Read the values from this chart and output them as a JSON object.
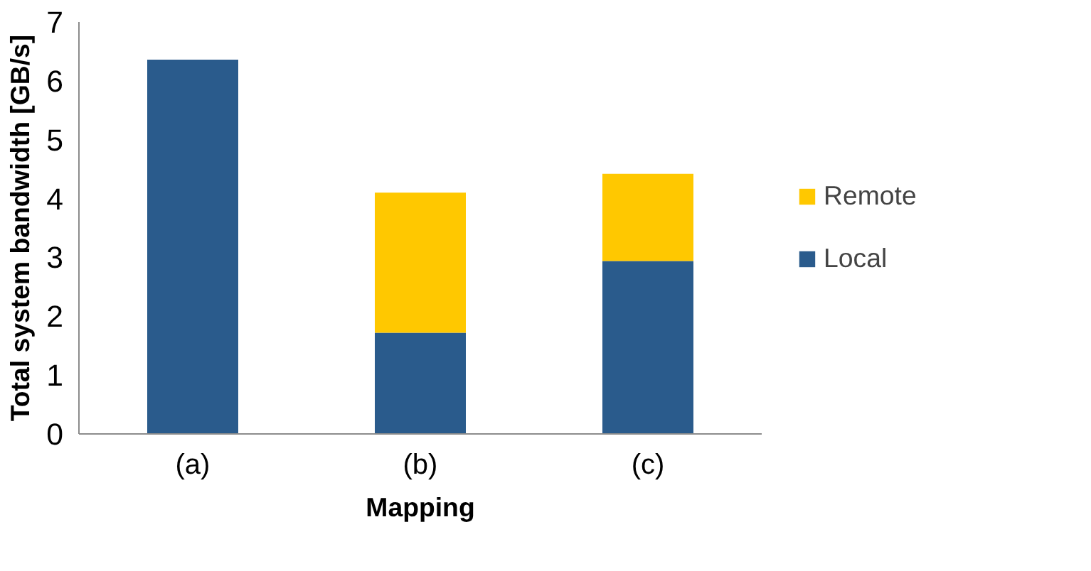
{
  "chart_data": {
    "type": "bar",
    "stacked": true,
    "xlabel": "Mapping",
    "ylabel": "Total system bandwidth [GB/s]",
    "categories": [
      "(a)",
      "(b)",
      "(c)"
    ],
    "series": [
      {
        "name": "Local",
        "color": "#2a5b8c",
        "values": [
          6.36,
          1.72,
          2.94
        ]
      },
      {
        "name": "Remote",
        "color": "#ffc800",
        "values": [
          null,
          2.38,
          1.48
        ]
      }
    ],
    "ylim": [
      0,
      7
    ],
    "yticks": [
      0,
      1,
      2,
      3,
      4,
      5,
      6,
      7
    ],
    "grid": false,
    "legend": "right"
  }
}
